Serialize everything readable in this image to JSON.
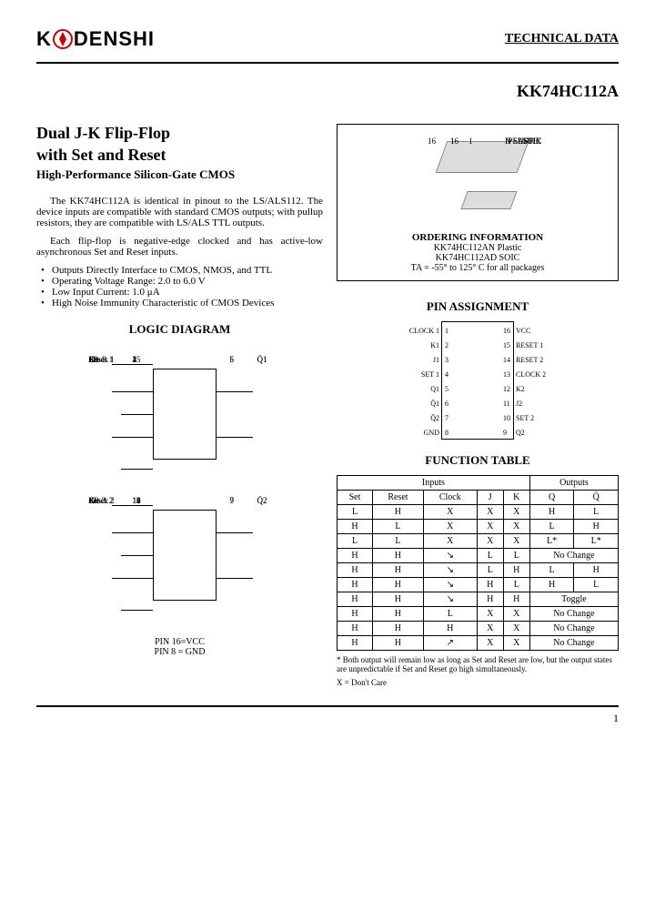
{
  "header": {
    "logo_text_1": "K",
    "logo_text_2": "DENSHI",
    "tech_data": "TECHNICAL DATA"
  },
  "part_number": "KK74HC112A",
  "title_line1": "Dual J-K Flip-Flop",
  "title_line2": "with Set and Reset",
  "subtitle": "High-Performance Silicon-Gate CMOS",
  "description": {
    "para1": "The KK74HC112A is identical in pinout to the LS/ALS112. The device inputs are compatible with standard CMOS outputs; with pullup resistors, they are compatible with LS/ALS TTL outputs.",
    "para2": "Each flip-flop is negative-edge clocked and has active-low asynchronous Set and Reset inputs."
  },
  "features": [
    "Outputs Directly Interface to CMOS, NMOS, and TTL",
    "Operating Voltage Range: 2.0 to 6.0 V",
    "Low Input Current: 1.0 μA",
    "High Noise Immunity Characteristic of CMOS Devices"
  ],
  "ordering": {
    "suffix1": "N SUFFIX",
    "suffix1_type": "PLASTIC",
    "suffix2": "D SUFFIX",
    "suffix2_type": "SOIC",
    "pin16": "16",
    "pin1": "1",
    "title": "ORDERING INFORMATION",
    "line1": "KK74HC112AN Plastic",
    "line2": "KK74HC112AD SOIC",
    "temp": "TA = -55° to 125° C for all packages"
  },
  "pin_assignment": {
    "title": "PIN ASSIGNMENT",
    "left_labels": [
      "CLOCK 1",
      "K1",
      "J1",
      "SET 1",
      "Q1",
      "Q̄1",
      "Q̄2",
      "GND"
    ],
    "left_nums": [
      "1",
      "2",
      "3",
      "4",
      "5",
      "6",
      "7",
      "8"
    ],
    "right_nums": [
      "16",
      "15",
      "14",
      "13",
      "12",
      "11",
      "10",
      "9"
    ],
    "right_labels": [
      "VCC",
      "RESET 1",
      "RESET 2",
      "CLOCK 2",
      "K2",
      "J2",
      "SET 2",
      "Q2"
    ]
  },
  "logic_diagram": {
    "title": "LOGIC DIAGRAM",
    "block1": {
      "set": "Set 1",
      "set_pin": "4",
      "k": "K1",
      "k_pin": "2",
      "clock": "Clock 1",
      "clock_pin": "1",
      "j": "J1",
      "j_pin": "3",
      "reset": "Reset 1",
      "reset_pin": "15",
      "q": "Q1",
      "q_pin": "5",
      "qbar": "Q̄1",
      "qbar_pin": "6"
    },
    "block2": {
      "set": "Set 2",
      "set_pin": "10",
      "k": "K2",
      "k_pin": "12",
      "clock": "Clock 2",
      "clock_pin": "13",
      "j": "J2",
      "j_pin": "11",
      "reset": "Reset 2",
      "reset_pin": "14",
      "q": "Q2",
      "q_pin": "9",
      "qbar": "Q̄2",
      "qbar_pin": "7"
    },
    "pin16_note": "PIN 16=VCC",
    "pin8_note": "PIN 8 = GND"
  },
  "function_table": {
    "title": "FUNCTION TABLE",
    "inputs_header": "Inputs",
    "outputs_header": "Outputs",
    "cols": [
      "Set",
      "Reset",
      "Clock",
      "J",
      "K",
      "Q",
      "Q̄"
    ],
    "rows": [
      [
        "L",
        "H",
        "X",
        "X",
        "X",
        "H",
        "L"
      ],
      [
        "H",
        "L",
        "X",
        "X",
        "X",
        "L",
        "H"
      ],
      [
        "L",
        "L",
        "X",
        "X",
        "X",
        "L*",
        "L*"
      ],
      [
        "H",
        "H",
        "↘",
        "L",
        "L",
        "No Change",
        ""
      ],
      [
        "H",
        "H",
        "↘",
        "L",
        "H",
        "L",
        "H"
      ],
      [
        "H",
        "H",
        "↘",
        "H",
        "L",
        "H",
        "L"
      ],
      [
        "H",
        "H",
        "↘",
        "H",
        "H",
        "Toggle",
        ""
      ],
      [
        "H",
        "H",
        "L",
        "X",
        "X",
        "No Change",
        ""
      ],
      [
        "H",
        "H",
        "H",
        "X",
        "X",
        "No Change",
        ""
      ],
      [
        "H",
        "H",
        "↗",
        "X",
        "X",
        "No Change",
        ""
      ]
    ],
    "footnote1": "* Both output will remain low as long as Set and Reset are low, but the output states are unpredictable if Set and Reset go high simultaneously.",
    "footnote2": "X = Don't Care"
  },
  "page_number": "1"
}
